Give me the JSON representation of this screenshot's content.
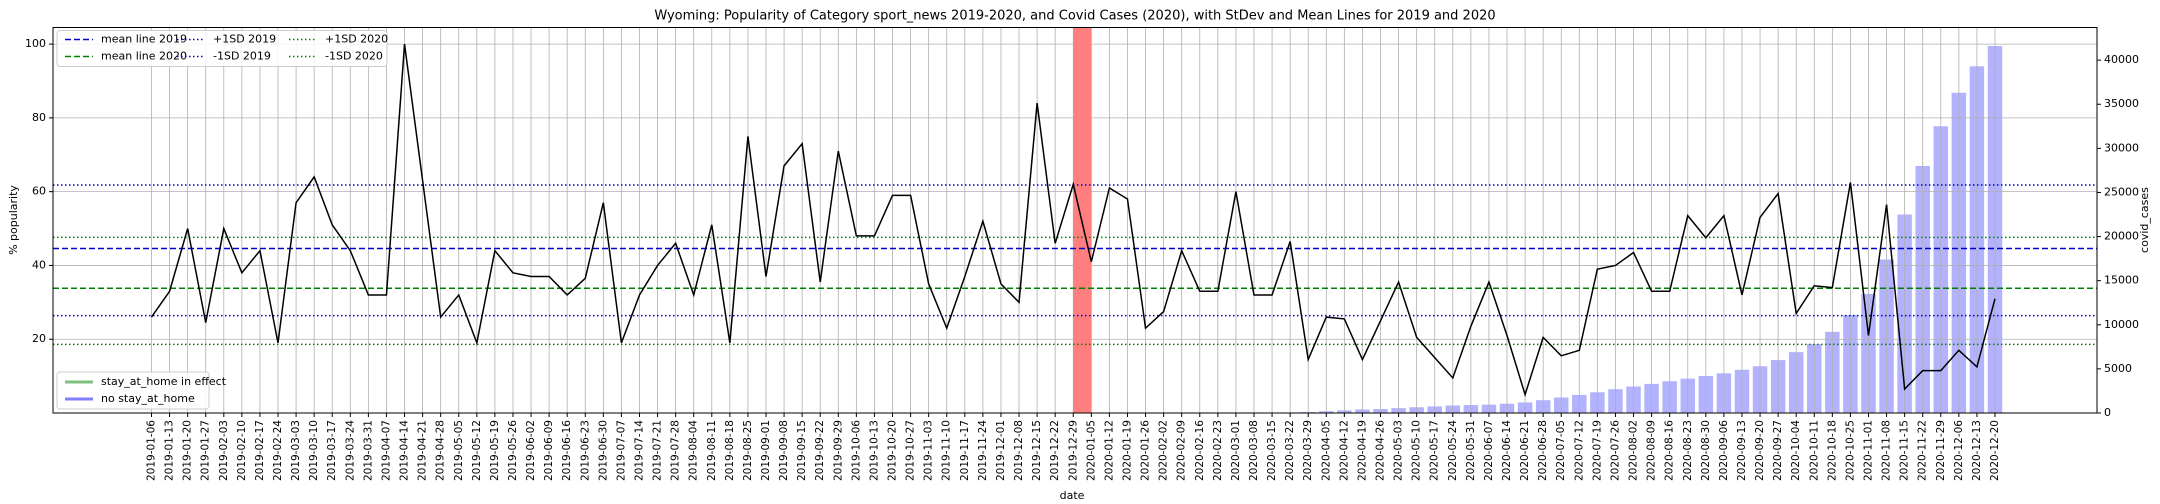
{
  "chart_data": {
    "type": "line",
    "title": "Wyoming: Popularity of Category sport_news 2019-2020, and Covid Cases (2020), with StDev and Mean Lines for 2019 and 2020",
    "xlabel": "date",
    "ylabel": "% popularity",
    "y2label": "covid_cases",
    "categories": [
      "2019-01-06",
      "2019-01-13",
      "2019-01-20",
      "2019-01-27",
      "2019-02-03",
      "2019-02-10",
      "2019-02-17",
      "2019-02-24",
      "2019-03-03",
      "2019-03-10",
      "2019-03-17",
      "2019-03-24",
      "2019-03-31",
      "2019-04-07",
      "2019-04-14",
      "2019-04-21",
      "2019-04-28",
      "2019-05-05",
      "2019-05-12",
      "2019-05-19",
      "2019-05-26",
      "2019-06-02",
      "2019-06-09",
      "2019-06-16",
      "2019-06-23",
      "2019-06-30",
      "2019-07-07",
      "2019-07-14",
      "2019-07-21",
      "2019-07-28",
      "2019-08-04",
      "2019-08-11",
      "2019-08-18",
      "2019-08-25",
      "2019-09-01",
      "2019-09-08",
      "2019-09-15",
      "2019-09-22",
      "2019-09-29",
      "2019-10-06",
      "2019-10-13",
      "2019-10-20",
      "2019-10-27",
      "2019-11-03",
      "2019-11-10",
      "2019-11-17",
      "2019-11-24",
      "2019-12-01",
      "2019-12-08",
      "2019-12-15",
      "2019-12-22",
      "2019-12-29",
      "2020-01-05",
      "2020-01-12",
      "2020-01-19",
      "2020-01-26",
      "2020-02-02",
      "2020-02-09",
      "2020-02-16",
      "2020-02-23",
      "2020-03-01",
      "2020-03-08",
      "2020-03-15",
      "2020-03-22",
      "2020-03-29",
      "2020-04-05",
      "2020-04-12",
      "2020-04-19",
      "2020-04-26",
      "2020-05-03",
      "2020-05-10",
      "2020-05-17",
      "2020-05-24",
      "2020-05-31",
      "2020-06-07",
      "2020-06-14",
      "2020-06-21",
      "2020-06-28",
      "2020-07-05",
      "2020-07-12",
      "2020-07-19",
      "2020-07-26",
      "2020-08-02",
      "2020-08-09",
      "2020-08-16",
      "2020-08-23",
      "2020-08-30",
      "2020-09-06",
      "2020-09-13",
      "2020-09-20",
      "2020-09-27",
      "2020-10-04",
      "2020-10-11",
      "2020-10-18",
      "2020-10-25",
      "2020-11-01",
      "2020-11-08",
      "2020-11-15",
      "2020-11-22",
      "2020-11-29",
      "2020-12-06",
      "2020-12-13",
      "2020-12-20"
    ],
    "series": [
      {
        "type": "line",
        "color": "#000000",
        "values": [
          26,
          33,
          50,
          24.5,
          50,
          38,
          44,
          19,
          57,
          64,
          51,
          44,
          32,
          32,
          100,
          63,
          26,
          32,
          19,
          44,
          38,
          37,
          37,
          32,
          36.5,
          57,
          19,
          32,
          40,
          46,
          32,
          51,
          19,
          75,
          37,
          67,
          73,
          35.5,
          71,
          48,
          48,
          59,
          59,
          35,
          23,
          37,
          52,
          35,
          30,
          84,
          46,
          62,
          41,
          61,
          58,
          23,
          27.5,
          44,
          33,
          33,
          60,
          32,
          32,
          46.5,
          14.5,
          26,
          25.5,
          14.5,
          25,
          35.5,
          20.5,
          15,
          9.5,
          23.5,
          35.5,
          21,
          5,
          20.5,
          15.5,
          17,
          39,
          40,
          43.5,
          33,
          33,
          53.5,
          47.5,
          53.5,
          32,
          53,
          59.5,
          27,
          34.5,
          34,
          62.5,
          21,
          56.5,
          6.5,
          11.5,
          11.5,
          17,
          12.5,
          31
        ]
      },
      {
        "type": "bar",
        "axis": "y2",
        "color": "#aaaaff",
        "values": [
          null,
          null,
          null,
          null,
          null,
          null,
          null,
          null,
          null,
          null,
          null,
          null,
          null,
          null,
          null,
          null,
          null,
          null,
          null,
          null,
          null,
          null,
          null,
          null,
          null,
          null,
          null,
          null,
          null,
          null,
          null,
          null,
          null,
          null,
          null,
          null,
          null,
          null,
          null,
          null,
          null,
          null,
          null,
          null,
          null,
          null,
          null,
          null,
          null,
          null,
          null,
          null,
          0,
          0,
          0,
          0,
          0,
          0,
          0,
          0,
          0,
          0,
          0,
          30,
          100,
          200,
          300,
          400,
          450,
          550,
          650,
          750,
          850,
          900,
          950,
          1050,
          1200,
          1450,
          1750,
          2050,
          2350,
          2700,
          3000,
          3300,
          3600,
          3900,
          4200,
          4500,
          4900,
          5300,
          6000,
          6900,
          7800,
          9200,
          11100,
          13500,
          17400,
          22500,
          28000,
          32500,
          36300,
          39300,
          41600
        ]
      }
    ],
    "hlines": [
      {
        "name": "mean line 2019",
        "value": 44.6,
        "color": "#0000cc",
        "dash": "dashed"
      },
      {
        "name": "mean line 2020",
        "value": 33.8,
        "color": "#008000",
        "dash": "dashed"
      },
      {
        "name": "+1SD 2019",
        "value": 61.8,
        "color": "#0000cc",
        "dash": "dotted"
      },
      {
        "name": "-1SD 2019",
        "value": 26.4,
        "color": "#0000cc",
        "dash": "dotted"
      },
      {
        "name": "+1SD 2020",
        "value": 47.6,
        "color": "#008000",
        "dash": "dotted"
      },
      {
        "name": "-1SD 2020",
        "value": 18.6,
        "color": "#008000",
        "dash": "dotted"
      }
    ],
    "span": {
      "start": "2019-12-29",
      "end": "2020-01-05",
      "color": "#ff7f7f"
    },
    "legend2": [
      {
        "name": "stay_at_home in effect",
        "color": "#7fbf7f"
      },
      {
        "name": "no stay_at_home",
        "color": "#7f7fff"
      }
    ],
    "ylim": [
      0,
      104.5
    ],
    "yticks": [
      20,
      40,
      60,
      80,
      100
    ],
    "y2lim": [
      0,
      43700
    ],
    "y2ticks": [
      0,
      5000,
      10000,
      15000,
      20000,
      25000,
      30000,
      35000,
      40000
    ],
    "grid": true,
    "legend": "upper left",
    "legend2_position": "lower left"
  }
}
